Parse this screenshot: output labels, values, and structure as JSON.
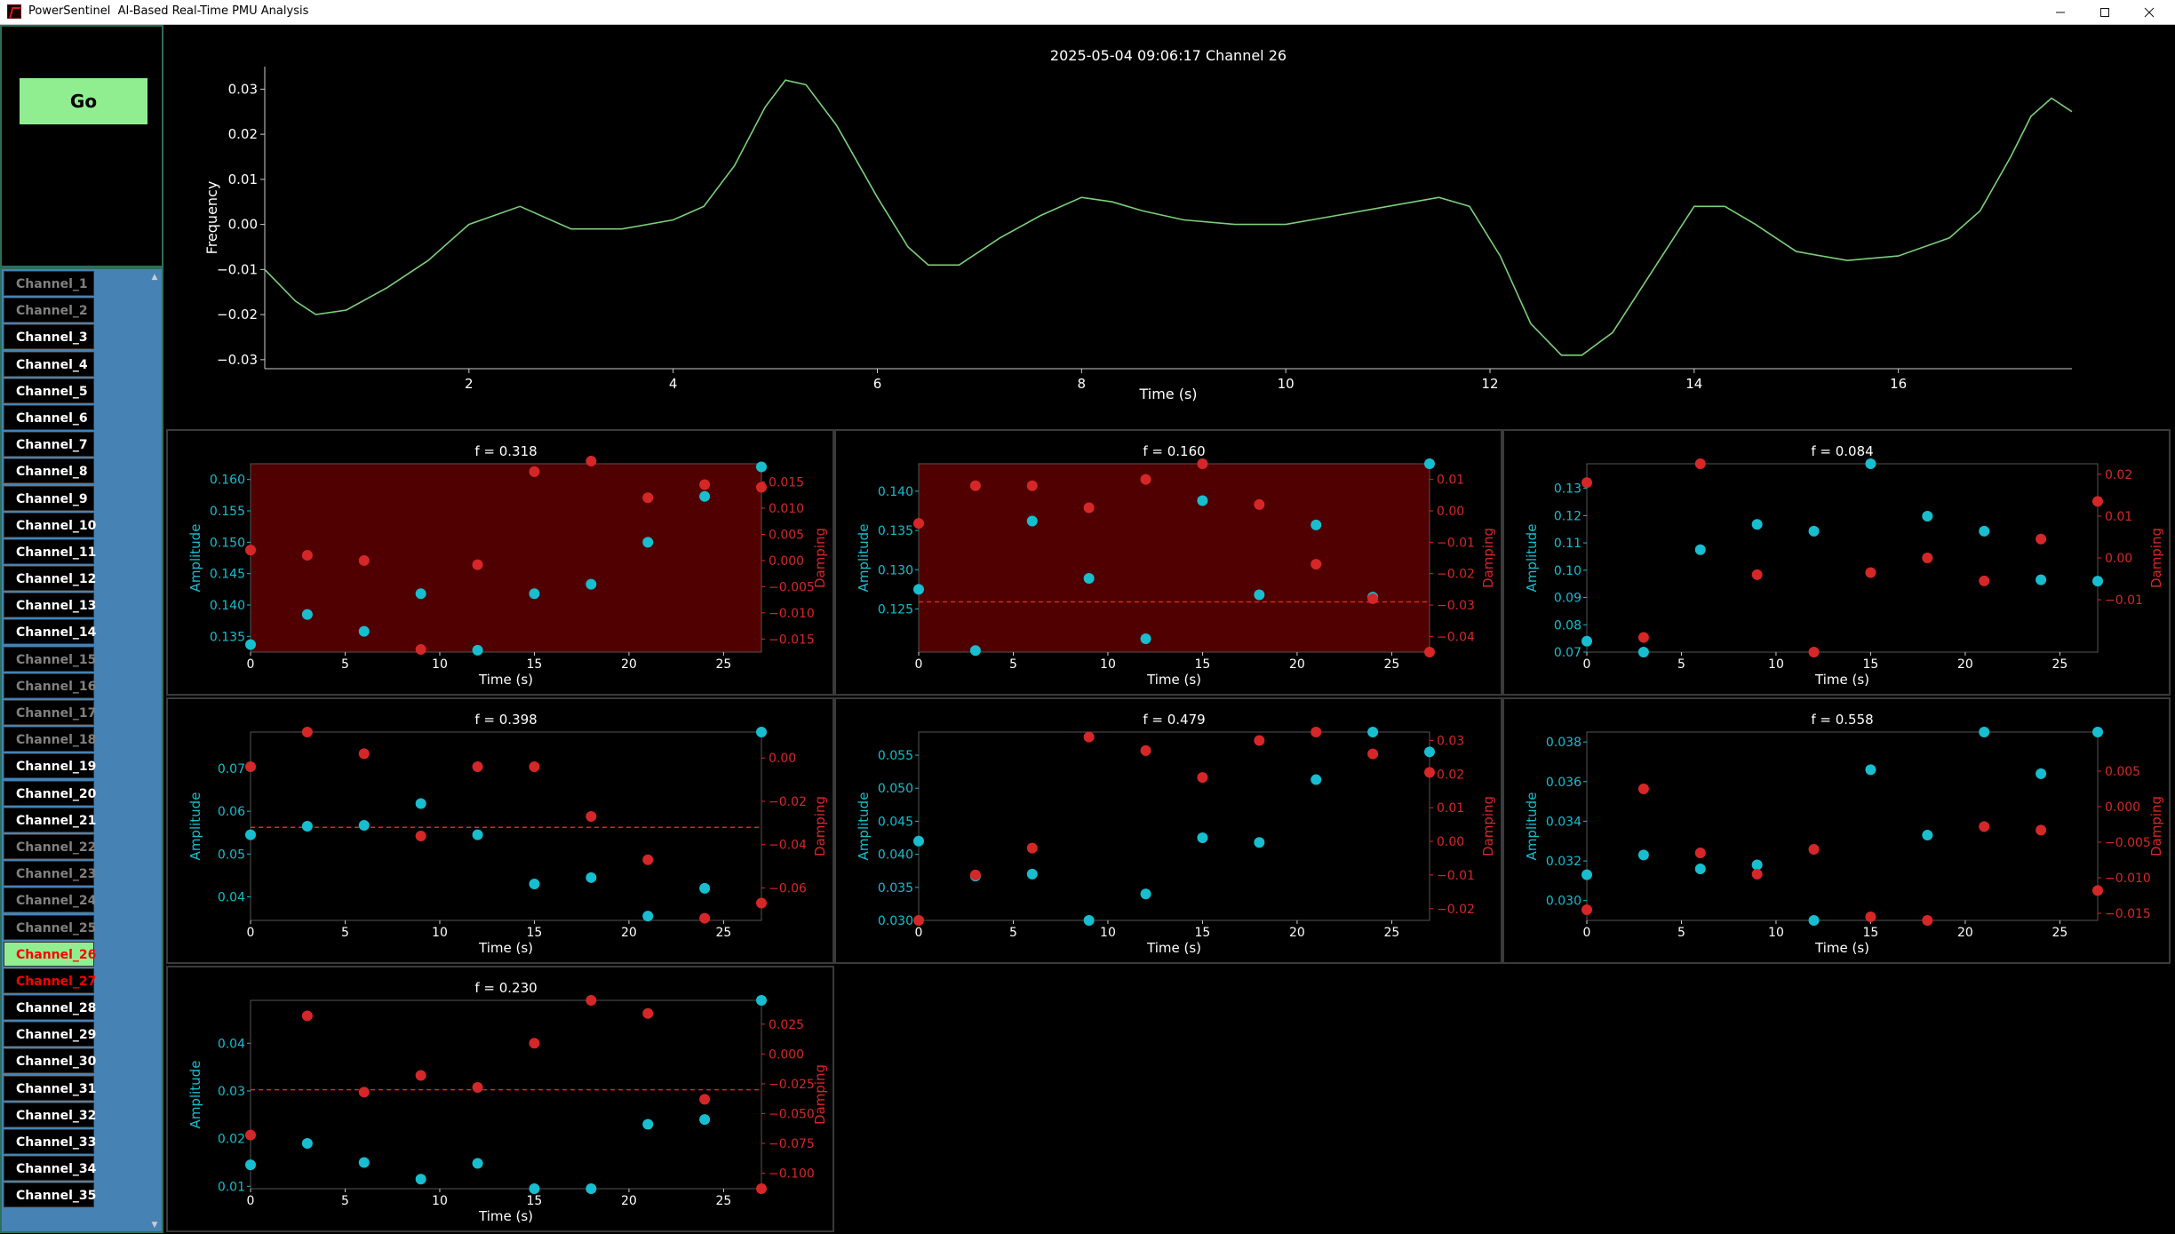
{
  "window": {
    "title": "PowerSentinel  AI-Based Real-Time PMU Analysis",
    "minimize_icon": "minimize-icon",
    "maximize_icon": "maximize-icon",
    "close_icon": "close-icon"
  },
  "controls": {
    "go_label": "Go"
  },
  "colors": {
    "go_button": "#90ee90",
    "channel_panel": "#4682b4",
    "line": "#7ccf7c",
    "amplitude": "#17becf",
    "damping": "#d62728",
    "alert_fill": "#500000"
  },
  "channels": [
    {
      "label": "Channel_1",
      "status": "inactive"
    },
    {
      "label": "Channel_2",
      "status": "inactive"
    },
    {
      "label": "Channel_3",
      "status": "active"
    },
    {
      "label": "Channel_4",
      "status": "active"
    },
    {
      "label": "Channel_5",
      "status": "active"
    },
    {
      "label": "Channel_6",
      "status": "active"
    },
    {
      "label": "Channel_7",
      "status": "active"
    },
    {
      "label": "Channel_8",
      "status": "active"
    },
    {
      "label": "Channel_9",
      "status": "active"
    },
    {
      "label": "Channel_10",
      "status": "active"
    },
    {
      "label": "Channel_11",
      "status": "active"
    },
    {
      "label": "Channel_12",
      "status": "active"
    },
    {
      "label": "Channel_13",
      "status": "active"
    },
    {
      "label": "Channel_14",
      "status": "active"
    },
    {
      "label": "Channel_15",
      "status": "inactive"
    },
    {
      "label": "Channel_16",
      "status": "inactive"
    },
    {
      "label": "Channel_17",
      "status": "inactive"
    },
    {
      "label": "Channel_18",
      "status": "inactive"
    },
    {
      "label": "Channel_19",
      "status": "active"
    },
    {
      "label": "Channel_20",
      "status": "active"
    },
    {
      "label": "Channel_21",
      "status": "active"
    },
    {
      "label": "Channel_22",
      "status": "inactive"
    },
    {
      "label": "Channel_23",
      "status": "inactive"
    },
    {
      "label": "Channel_24",
      "status": "inactive"
    },
    {
      "label": "Channel_25",
      "status": "inactive"
    },
    {
      "label": "Channel_26",
      "status": "selected"
    },
    {
      "label": "Channel_27",
      "status": "alarm"
    },
    {
      "label": "Channel_28",
      "status": "active"
    },
    {
      "label": "Channel_29",
      "status": "active"
    },
    {
      "label": "Channel_30",
      "status": "active"
    },
    {
      "label": "Channel_31",
      "status": "active"
    },
    {
      "label": "Channel_32",
      "status": "active"
    },
    {
      "label": "Channel_33",
      "status": "active"
    },
    {
      "label": "Channel_34",
      "status": "active"
    },
    {
      "label": "Channel_35",
      "status": "active"
    }
  ],
  "chart_data": [
    {
      "type": "line",
      "title": "2025-05-04 09:06:17    Channel 26",
      "xlabel": "Time (s)",
      "ylabel": "Frequency",
      "xlim": [
        0,
        17.7
      ],
      "ylim": [
        -0.032,
        0.035
      ],
      "xticks": [
        2,
        4,
        6,
        8,
        10,
        12,
        14,
        16
      ],
      "yticks": [
        -0.03,
        -0.02,
        -0.01,
        0.0,
        0.01,
        0.02,
        0.03
      ],
      "ytick_labels": [
        "−0.03",
        "−0.02",
        "−0.01",
        "0.00",
        "0.01",
        "0.02",
        "0.03"
      ],
      "grid": false,
      "x": [
        0,
        0.3,
        0.5,
        0.8,
        1.2,
        1.6,
        2.0,
        2.5,
        3.0,
        3.5,
        4.0,
        4.3,
        4.6,
        4.9,
        5.1,
        5.3,
        5.6,
        6.0,
        6.3,
        6.5,
        6.8,
        7.2,
        7.6,
        8.0,
        8.3,
        8.6,
        9.0,
        9.5,
        10.0,
        10.5,
        11.0,
        11.5,
        11.8,
        12.1,
        12.4,
        12.7,
        12.9,
        13.2,
        13.6,
        14.0,
        14.3,
        14.6,
        15.0,
        15.5,
        16.0,
        16.5,
        16.8,
        17.1,
        17.3,
        17.5,
        17.7
      ],
      "series": [
        {
          "values": [
            -0.01,
            -0.017,
            -0.02,
            -0.019,
            -0.014,
            -0.008,
            0.0,
            0.004,
            -0.001,
            -0.001,
            0.001,
            0.004,
            0.013,
            0.026,
            0.032,
            0.031,
            0.022,
            0.006,
            -0.005,
            -0.009,
            -0.009,
            -0.003,
            0.002,
            0.006,
            0.005,
            0.003,
            0.001,
            0.0,
            0.0,
            0.002,
            0.004,
            0.006,
            0.004,
            -0.007,
            -0.022,
            -0.029,
            -0.029,
            -0.024,
            -0.01,
            0.004,
            0.004,
            0.0,
            -0.006,
            -0.008,
            -0.007,
            -0.003,
            0.003,
            0.015,
            0.024,
            0.028,
            0.025
          ]
        }
      ]
    },
    {
      "type": "scatter",
      "title": "f = 0.318",
      "xlabel": "Time (s)",
      "ylabel_left": "Amplitude",
      "ylabel_right": "Damping",
      "alert": true,
      "xlim": [
        0,
        27
      ],
      "xticks": [
        0,
        5,
        10,
        15,
        20,
        25
      ],
      "ylim_left": [
        0.1325,
        0.1625
      ],
      "yticks_left": [
        0.135,
        0.14,
        0.145,
        0.15,
        0.155,
        0.16
      ],
      "ytick_labels_left": [
        "0.135",
        "0.140",
        "0.145",
        "0.150",
        "0.155",
        "0.160"
      ],
      "ylim_right": [
        -0.0175,
        0.0185
      ],
      "yticks_right": [
        -0.015,
        -0.01,
        -0.005,
        0.0,
        0.005,
        0.01,
        0.015
      ],
      "ytick_labels_right": [
        "−0.015",
        "−0.010",
        "−0.005",
        "0.000",
        "0.005",
        "0.010",
        "0.015"
      ],
      "threshold": null,
      "x": [
        0,
        3,
        6,
        9,
        12,
        15,
        18,
        21,
        24,
        27
      ],
      "series": [
        {
          "name": "Amplitude",
          "values": [
            0.1337,
            0.1385,
            0.1358,
            0.1418,
            0.1328,
            0.1418,
            0.1433,
            0.15,
            0.1573,
            0.162
          ]
        },
        {
          "name": "Damping",
          "values": [
            0.002,
            0.001,
            0.0,
            -0.017,
            -0.0008,
            0.017,
            0.019,
            0.012,
            0.0145,
            0.014
          ]
        }
      ]
    },
    {
      "type": "scatter",
      "title": "f = 0.160",
      "xlabel": "Time (s)",
      "ylabel_left": "Amplitude",
      "ylabel_right": "Damping",
      "alert": true,
      "xlim": [
        0,
        27
      ],
      "xticks": [
        0,
        5,
        10,
        15,
        20,
        25
      ],
      "ylim_left": [
        0.1195,
        0.1435
      ],
      "yticks_left": [
        0.125,
        0.13,
        0.135,
        0.14
      ],
      "ytick_labels_left": [
        "0.125",
        "0.130",
        "0.135",
        "0.140"
      ],
      "ylim_right": [
        -0.045,
        0.015
      ],
      "yticks_right": [
        -0.04,
        -0.03,
        -0.02,
        -0.01,
        0.0,
        0.01
      ],
      "ytick_labels_right": [
        "−0.04",
        "−0.03",
        "−0.02",
        "−0.01",
        "0.00",
        "0.01"
      ],
      "threshold": {
        "axis": "right",
        "value": -0.029
      },
      "x": [
        0,
        3,
        6,
        9,
        12,
        15,
        18,
        21,
        24,
        27
      ],
      "series": [
        {
          "name": "Amplitude",
          "values": [
            0.1275,
            0.1197,
            0.1362,
            0.1289,
            0.1212,
            0.1388,
            0.1268,
            0.1357,
            0.1265,
            0.1435
          ]
        },
        {
          "name": "Damping",
          "values": [
            -0.004,
            0.008,
            0.008,
            0.001,
            0.01,
            0.015,
            0.002,
            -0.017,
            -0.028,
            -0.045
          ]
        }
      ]
    },
    {
      "type": "scatter",
      "title": "f = 0.084",
      "xlabel": "Time (s)",
      "ylabel_left": "Amplitude",
      "ylabel_right": "Damping",
      "alert": false,
      "xlim": [
        0,
        27
      ],
      "xticks": [
        0,
        5,
        10,
        15,
        20,
        25
      ],
      "ylim_left": [
        0.07,
        0.139
      ],
      "yticks_left": [
        0.07,
        0.08,
        0.09,
        0.1,
        0.11,
        0.12,
        0.13
      ],
      "ytick_labels_left": [
        "0.07",
        "0.08",
        "0.09",
        "0.10",
        "0.11",
        "0.12",
        "0.13"
      ],
      "ylim_right": [
        -0.0225,
        0.0225
      ],
      "yticks_right": [
        -0.01,
        0.0,
        0.01,
        0.02
      ],
      "ytick_labels_right": [
        "−0.01",
        "0.00",
        "0.01",
        "0.02"
      ],
      "threshold": null,
      "x": [
        0,
        3,
        6,
        9,
        12,
        15,
        18,
        21,
        24,
        27
      ],
      "series": [
        {
          "name": "Amplitude",
          "values": [
            0.074,
            0.07,
            0.1075,
            0.1168,
            0.1143,
            0.139,
            0.1198,
            0.1143,
            0.0965,
            0.096
          ]
        },
        {
          "name": "Damping",
          "values": [
            0.018,
            -0.019,
            0.0225,
            -0.004,
            -0.0225,
            -0.0035,
            0.0,
            -0.0055,
            0.0045,
            0.0135
          ]
        }
      ]
    },
    {
      "type": "scatter",
      "title": "f = 0.398",
      "xlabel": "Time (s)",
      "ylabel_left": "Amplitude",
      "ylabel_right": "Damping",
      "alert": false,
      "xlim": [
        0,
        27
      ],
      "xticks": [
        0,
        5,
        10,
        15,
        20,
        25
      ],
      "ylim_left": [
        0.0345,
        0.0785
      ],
      "yticks_left": [
        0.04,
        0.05,
        0.06,
        0.07
      ],
      "ytick_labels_left": [
        "0.04",
        "0.05",
        "0.06",
        "0.07"
      ],
      "ylim_right": [
        -0.075,
        0.012
      ],
      "yticks_right": [
        -0.06,
        -0.04,
        -0.02,
        0.0
      ],
      "ytick_labels_right": [
        "−0.06",
        "−0.04",
        "−0.02",
        "0.00"
      ],
      "threshold": {
        "axis": "right",
        "value": -0.032
      },
      "x": [
        0,
        3,
        6,
        9,
        12,
        15,
        18,
        21,
        24,
        27
      ],
      "series": [
        {
          "name": "Amplitude",
          "values": [
            0.0545,
            0.0565,
            0.0567,
            0.0618,
            0.0545,
            0.043,
            0.0445,
            0.0355,
            0.042,
            0.0785
          ]
        },
        {
          "name": "Damping",
          "values": [
            -0.004,
            0.012,
            0.002,
            -0.036,
            -0.004,
            -0.004,
            -0.027,
            -0.047,
            -0.074,
            -0.067
          ]
        }
      ]
    },
    {
      "type": "scatter",
      "title": "f = 0.479",
      "xlabel": "Time (s)",
      "ylabel_left": "Amplitude",
      "ylabel_right": "Damping",
      "alert": false,
      "xlim": [
        0,
        27
      ],
      "xticks": [
        0,
        5,
        10,
        15,
        20,
        25
      ],
      "ylim_left": [
        0.03,
        0.0585
      ],
      "yticks_left": [
        0.03,
        0.035,
        0.04,
        0.045,
        0.05,
        0.055
      ],
      "ytick_labels_left": [
        "0.030",
        "0.035",
        "0.040",
        "0.045",
        "0.050",
        "0.055"
      ],
      "ylim_right": [
        -0.0235,
        0.0325
      ],
      "yticks_right": [
        -0.02,
        -0.01,
        0.0,
        0.01,
        0.02,
        0.03
      ],
      "ytick_labels_right": [
        "−0.02",
        "−0.01",
        "0.00",
        "0.01",
        "0.02",
        "0.03"
      ],
      "threshold": null,
      "x": [
        0,
        3,
        6,
        9,
        12,
        15,
        18,
        21,
        24,
        27
      ],
      "series": [
        {
          "name": "Amplitude",
          "values": [
            0.042,
            0.0367,
            0.037,
            0.03,
            0.034,
            0.0425,
            0.0418,
            0.0513,
            0.0585,
            0.0555
          ]
        },
        {
          "name": "Damping",
          "values": [
            -0.0235,
            -0.01,
            -0.002,
            0.031,
            0.027,
            0.019,
            0.03,
            0.0325,
            0.026,
            0.0205
          ]
        }
      ]
    },
    {
      "type": "scatter",
      "title": "f = 0.558",
      "xlabel": "Time (s)",
      "ylabel_left": "Amplitude",
      "ylabel_right": "Damping",
      "alert": false,
      "xlim": [
        0,
        27
      ],
      "xticks": [
        0,
        5,
        10,
        15,
        20,
        25
      ],
      "ylim_left": [
        0.029,
        0.0385
      ],
      "yticks_left": [
        0.03,
        0.032,
        0.034,
        0.036,
        0.038
      ],
      "ytick_labels_left": [
        "0.030",
        "0.032",
        "0.034",
        "0.036",
        "0.038"
      ],
      "ylim_right": [
        -0.016,
        0.0105
      ],
      "yticks_right": [
        -0.015,
        -0.01,
        -0.005,
        0.0,
        0.005
      ],
      "ytick_labels_right": [
        "−0.015",
        "−0.010",
        "−0.005",
        "0.000",
        "0.005"
      ],
      "threshold": null,
      "x": [
        0,
        3,
        6,
        9,
        12,
        15,
        18,
        21,
        24,
        27
      ],
      "series": [
        {
          "name": "Amplitude",
          "values": [
            0.0313,
            0.0323,
            0.0316,
            0.0318,
            0.029,
            0.0366,
            0.0333,
            0.0385,
            0.0364,
            0.0385
          ]
        },
        {
          "name": "Damping",
          "values": [
            -0.0145,
            0.0025,
            -0.0065,
            -0.0095,
            -0.006,
            -0.0155,
            -0.016,
            -0.0028,
            -0.0033,
            -0.0118
          ]
        }
      ]
    },
    {
      "type": "scatter",
      "title": "f = 0.230",
      "xlabel": "Time (s)",
      "ylabel_left": "Amplitude",
      "ylabel_right": "Damping",
      "alert": false,
      "xlim": [
        0,
        27
      ],
      "xticks": [
        0,
        5,
        10,
        15,
        20,
        25
      ],
      "ylim_left": [
        0.0095,
        0.049
      ],
      "yticks_left": [
        0.01,
        0.02,
        0.03,
        0.04
      ],
      "ytick_labels_left": [
        "0.01",
        "0.02",
        "0.03",
        "0.04"
      ],
      "ylim_right": [
        -0.113,
        0.045
      ],
      "yticks_right": [
        -0.1,
        -0.075,
        -0.05,
        -0.025,
        0.0,
        0.025
      ],
      "ytick_labels_right": [
        "−0.100",
        "−0.075",
        "−0.050",
        "−0.025",
        "0.000",
        "0.025"
      ],
      "threshold": {
        "axis": "right",
        "value": -0.03
      },
      "x": [
        0,
        3,
        6,
        9,
        12,
        15,
        18,
        21,
        24,
        27
      ],
      "series": [
        {
          "name": "Amplitude",
          "values": [
            0.0145,
            0.019,
            0.015,
            0.0115,
            0.0148,
            0.0095,
            0.0095,
            0.023,
            0.024,
            0.049
          ]
        },
        {
          "name": "Damping",
          "values": [
            -0.068,
            0.032,
            -0.032,
            -0.018,
            -0.028,
            0.009,
            0.045,
            0.034,
            -0.038,
            -0.113
          ]
        }
      ]
    }
  ]
}
